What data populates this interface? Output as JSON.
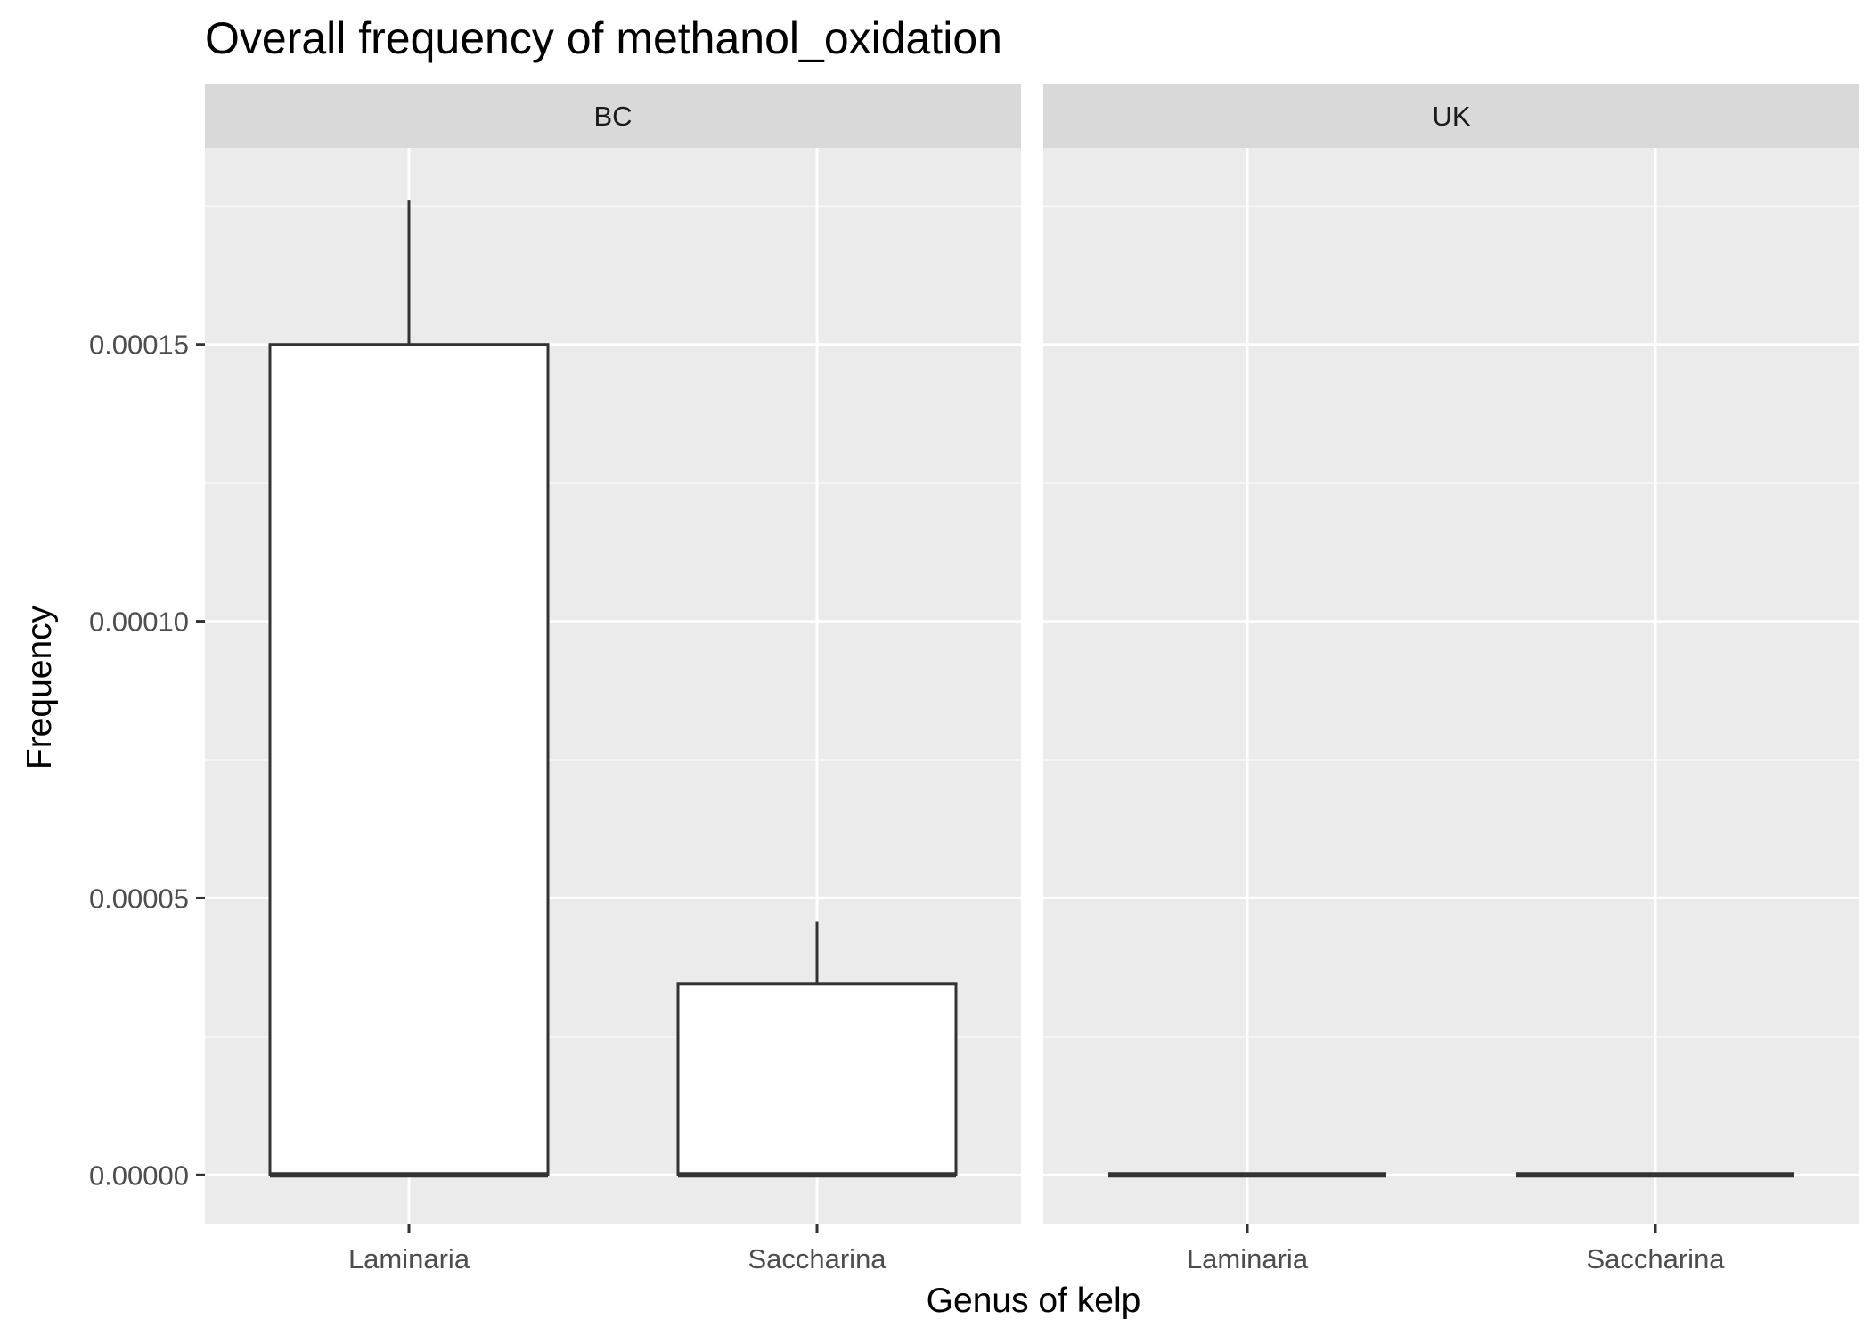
{
  "chart_data": {
    "type": "box",
    "title": "Overall frequency of methanol_oxidation",
    "xlabel": "Genus of kelp",
    "ylabel": "Frequency",
    "ylim": [
      -8.8e-06,
      0.0001855
    ],
    "yticks": [
      0,
      5e-05,
      0.0001,
      0.00015
    ],
    "ytick_labels": [
      "0.00000",
      "0.00005",
      "0.00010",
      "0.00015"
    ],
    "grid": true,
    "categories": [
      "Laminaria",
      "Saccharina"
    ],
    "panels": [
      {
        "label": "BC",
        "boxes": [
          {
            "category": "Laminaria",
            "min": 0,
            "q1": 0,
            "median": 0,
            "q3": 0.00015,
            "max": 0.000176
          },
          {
            "category": "Saccharina",
            "min": 0,
            "q1": 0,
            "median": 0,
            "q3": 3.45e-05,
            "max": 4.58e-05
          }
        ]
      },
      {
        "label": "UK",
        "boxes": [
          {
            "category": "Laminaria",
            "min": 0,
            "q1": 0,
            "median": 0,
            "q3": 0,
            "max": 0
          },
          {
            "category": "Saccharina",
            "min": 0,
            "q1": 0,
            "median": 0,
            "q3": 0,
            "max": 0
          }
        ]
      }
    ],
    "colors": {
      "panel_bg": "#ebebeb",
      "strip_bg": "#d9d9d9",
      "grid_major": "#ffffff",
      "grid_minor": "#f5f5f5",
      "box_fill": "#ffffff",
      "box_line": "#333333",
      "tick": "#333333"
    }
  }
}
